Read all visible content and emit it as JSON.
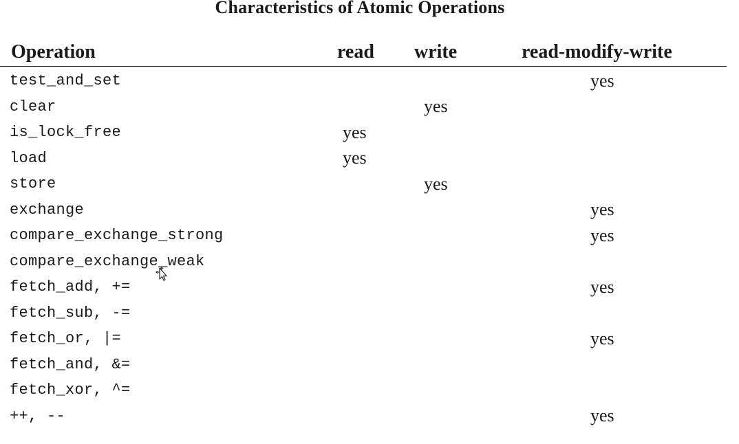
{
  "title": "Characteristics of Atomic Operations",
  "headers": {
    "operation": "Operation",
    "read": "read",
    "write": "write",
    "rmw": "read-modify-write"
  },
  "rows": [
    {
      "operation": "test_and_set",
      "read": "",
      "write": "",
      "rmw": "yes"
    },
    {
      "operation": "clear",
      "read": "",
      "write": "yes",
      "rmw": ""
    },
    {
      "operation": "is_lock_free",
      "read": "yes",
      "write": "",
      "rmw": ""
    },
    {
      "operation": "load",
      "read": "yes",
      "write": "",
      "rmw": ""
    },
    {
      "operation": "store",
      "read": "",
      "write": "yes",
      "rmw": ""
    },
    {
      "operation": "exchange",
      "read": "",
      "write": "",
      "rmw": "yes"
    },
    {
      "operation": "compare_exchange_strong",
      "read": "",
      "write": "",
      "rmw": "yes"
    },
    {
      "operation": "compare_exchange_weak",
      "read": "",
      "write": "",
      "rmw": ""
    },
    {
      "operation": "fetch_add, +=",
      "read": "",
      "write": "",
      "rmw": "yes"
    },
    {
      "operation": "fetch_sub, -=",
      "read": "",
      "write": "",
      "rmw": ""
    },
    {
      "operation": "fetch_or, |=",
      "read": "",
      "write": "",
      "rmw": "yes"
    },
    {
      "operation": "fetch_and, &=",
      "read": "",
      "write": "",
      "rmw": ""
    },
    {
      "operation": "fetch_xor, ^=",
      "read": "",
      "write": "",
      "rmw": ""
    },
    {
      "operation": "++, --",
      "read": "",
      "write": "",
      "rmw": "yes"
    }
  ],
  "cursor": {
    "icon": "move-cursor-icon"
  }
}
